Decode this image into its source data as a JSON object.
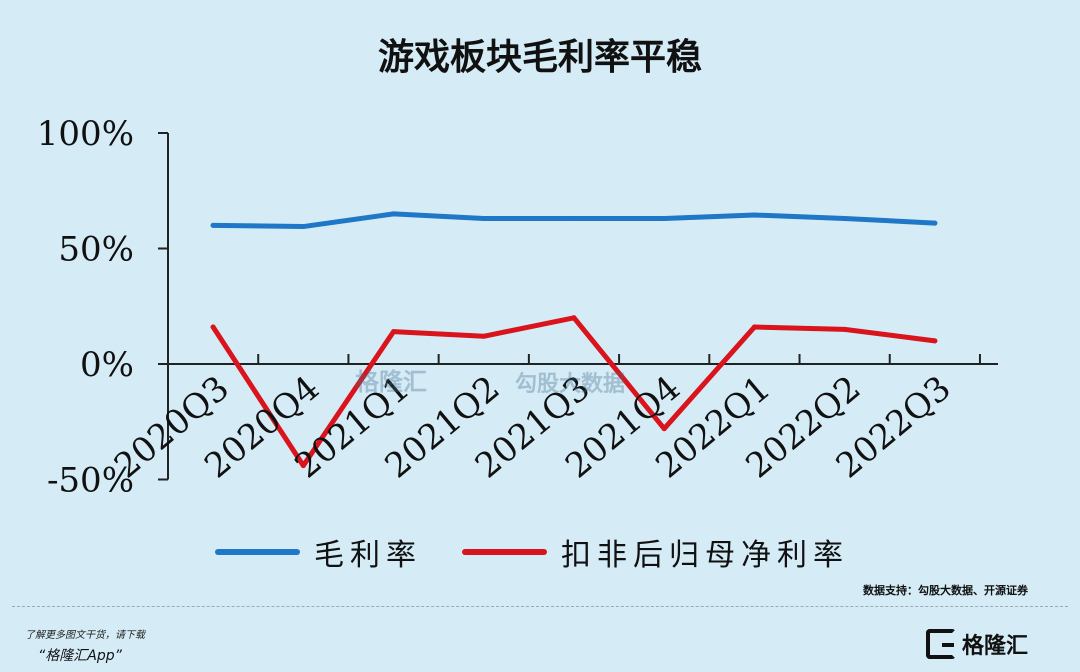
{
  "chart_data": {
    "type": "line",
    "title": "游戏板块毛利率平稳",
    "categories": [
      "2020Q3",
      "2020Q4",
      "2021Q1",
      "2021Q2",
      "2021Q3",
      "2021Q4",
      "2022Q1",
      "2022Q2",
      "2022Q3"
    ],
    "y_ticks": [
      "100%",
      "50%",
      "0%",
      "-50%"
    ],
    "ylim": [
      -50,
      100
    ],
    "series": [
      {
        "name": "毛利率",
        "color": "#1f77c8",
        "values": [
          60,
          59.5,
          65,
          63,
          63,
          63,
          64.5,
          63,
          61
        ]
      },
      {
        "name": "扣非后归母净利率",
        "color": "#d9141c",
        "values": [
          16,
          -44,
          14,
          12,
          20,
          -28,
          16,
          15,
          10
        ]
      }
    ],
    "legend_position": "bottom"
  },
  "source": "数据支持：勾股大数据、开源证券",
  "footer": {
    "promo_line1": "了解更多图文干货，请下载",
    "promo_line2": "“格隆汇App”",
    "brand_name": "格隆汇"
  },
  "watermark": {
    "text1": "格隆汇",
    "text2": "勾股大数据"
  }
}
